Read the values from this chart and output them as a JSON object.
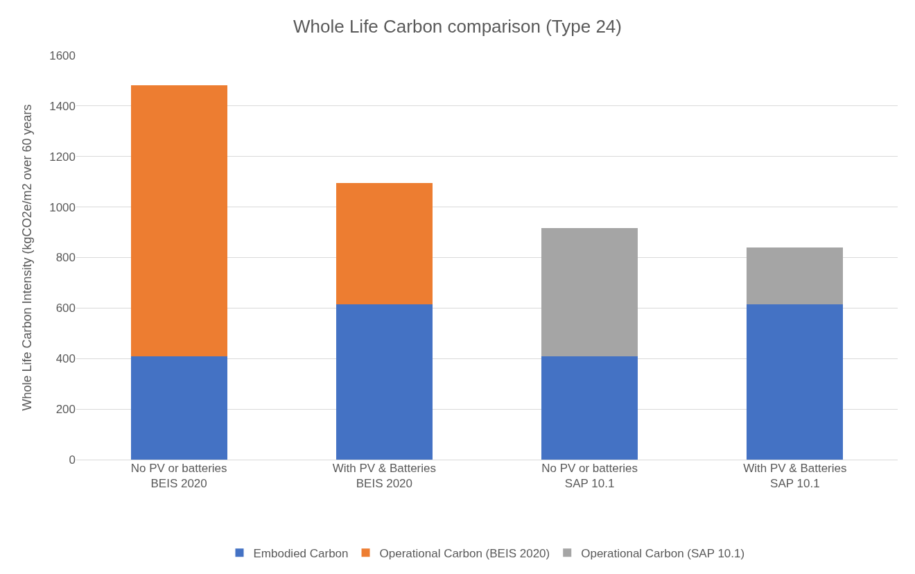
{
  "chart_data": {
    "type": "bar",
    "title": "Whole Life Carbon comparison (Type 24)",
    "ylabel": "Whole Life Carbon Intensity (kgCO2e/m2 over 60 years",
    "categories": [
      "No PV or batteries\nBEIS 2020",
      "With PV & Batteries\nBEIS 2020",
      "No PV or batteries\nSAP 10.1",
      "With PV & Batteries\nSAP 10.1"
    ],
    "stacked": true,
    "series": [
      {
        "name": "Embodied Carbon",
        "color": "#4472c4",
        "values": [
          408,
          615,
          408,
          615
        ]
      },
      {
        "name": "Operational Carbon (BEIS 2020)",
        "color": "#ed7d31",
        "values": [
          1075,
          480,
          null,
          null
        ]
      },
      {
        "name": "Operational Carbon (SAP 10.1)",
        "color": "#a5a5a5",
        "values": [
          null,
          null,
          510,
          225
        ]
      }
    ],
    "ylim": [
      0,
      1600
    ],
    "yticks": [
      0,
      200,
      400,
      600,
      800,
      1000,
      1200,
      1400,
      1600
    ],
    "grid": "y",
    "legend": "bottom"
  }
}
